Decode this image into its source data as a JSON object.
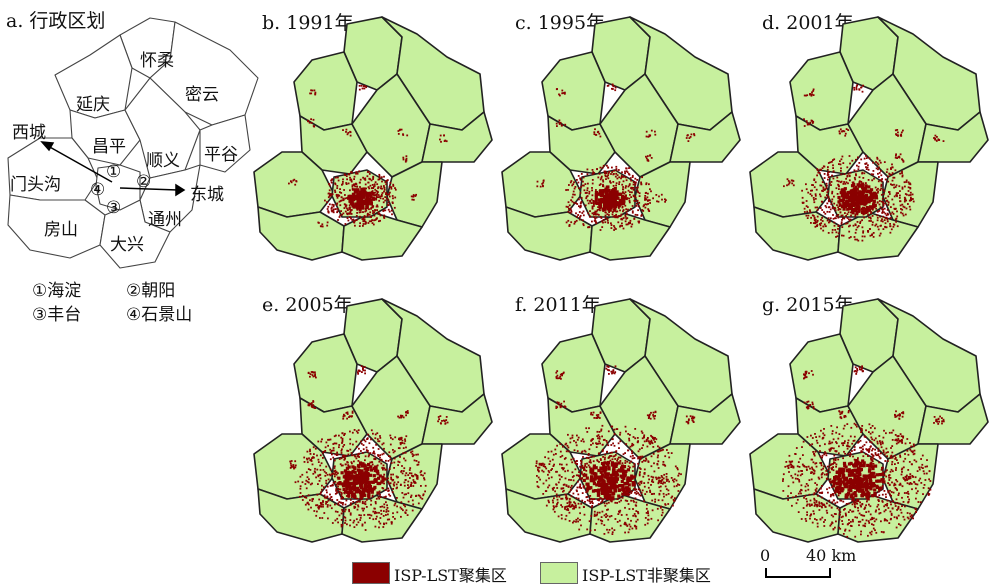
{
  "panels": {
    "a": "a. 行政区划",
    "b": "b. 1991年",
    "c": "c. 1995年",
    "d": "d. 2001年",
    "e": "e. 2005年",
    "f": "f. 2011年",
    "g": "g. 2015年"
  },
  "admin_map": {
    "districts": [
      "怀柔",
      "延庆",
      "密云",
      "西城",
      "昌平",
      "顺义",
      "平谷",
      "门头沟",
      "东城",
      "房山",
      "通州",
      "大兴"
    ],
    "markers": [
      "①",
      "②",
      "③",
      "④"
    ],
    "key": [
      "①海淀",
      "②朝阳",
      "③丰台",
      "④石景山"
    ]
  },
  "legend": {
    "cluster_label": "ISP-LST聚集区",
    "noncluster_label": "ISP-LST非聚集区",
    "cluster_color": "#8b0000",
    "noncluster_color": "#c7f09e"
  },
  "scale_bar": {
    "zero": "0",
    "distance": "40 km"
  },
  "cluster_intensity": {
    "b": 0.25,
    "c": 0.35,
    "d": 0.55,
    "e": 0.7,
    "f": 0.8,
    "g": 0.85
  }
}
